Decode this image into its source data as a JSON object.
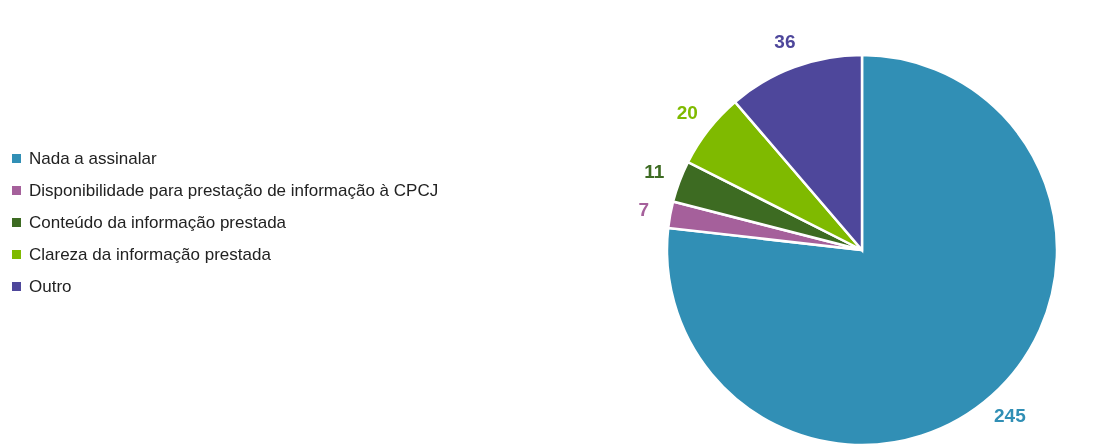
{
  "chart_data": {
    "type": "pie",
    "categories": [
      "Nada a assinalar",
      "Disponibilidade para prestação de informação à CPCJ",
      "Conteúdo da informação prestada",
      "Clareza da informação prestada",
      "Outro"
    ],
    "values": [
      245,
      7,
      11,
      20,
      36
    ],
    "colors": [
      "#318fb5",
      "#a5609b",
      "#3d6b22",
      "#7fba00",
      "#4e479b"
    ],
    "data_labels": true,
    "legend": "left"
  }
}
